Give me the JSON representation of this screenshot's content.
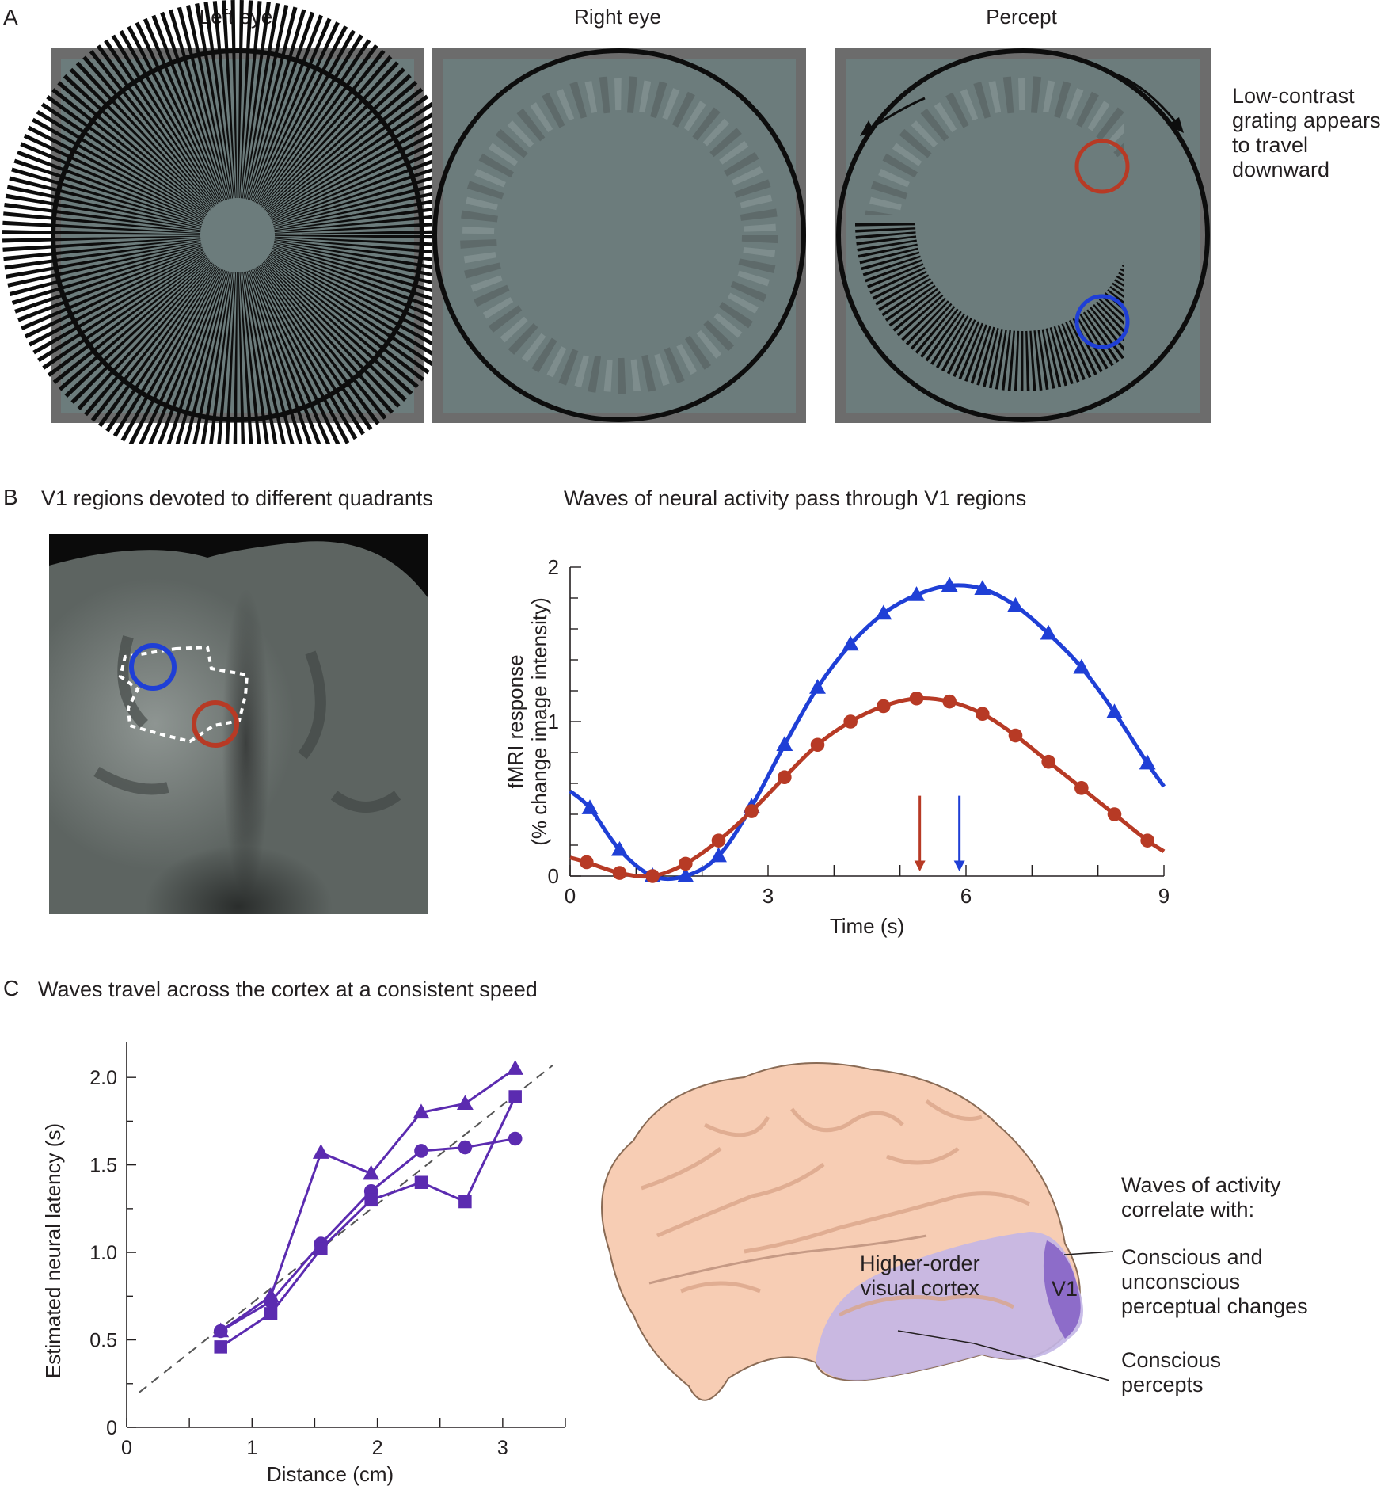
{
  "panel_a": {
    "letter": "A",
    "labels": {
      "left": "Left eye",
      "right": "Right eye",
      "percept": "Percept"
    },
    "annotation": [
      "Low-contrast",
      "grating appears",
      "to travel",
      "downward"
    ]
  },
  "panel_b": {
    "letter": "B",
    "left_title": "V1 regions devoted to different quadrants",
    "right_title": "Waves of neural activity pass through V1 regions"
  },
  "panel_c": {
    "letter": "C",
    "title": "Waves travel across the cortex at a consistent speed",
    "brain": {
      "higher_order": [
        "Higher-order",
        "visual cortex"
      ],
      "v1": "V1",
      "waves_header": [
        "Waves of activity",
        "correlate with:"
      ],
      "conscious_unconscious": [
        "Conscious and",
        "unconscious",
        "perceptual changes"
      ],
      "conscious": [
        "Conscious",
        "percepts"
      ]
    }
  },
  "chart_data": [
    {
      "type": "line",
      "panel": "B",
      "xlabel": "Time (s)",
      "ylabel": "fMRI response (% change image intensity)",
      "ylabel_lines": [
        "fMRI response",
        "(% change image intensity)"
      ],
      "xlim": [
        0,
        9
      ],
      "ylim": [
        0,
        2
      ],
      "xticks": [
        0,
        3,
        6,
        9
      ],
      "yticks": [
        0,
        1,
        2
      ],
      "series": [
        {
          "marker": "triangle",
          "color": "#1f3fd6",
          "x": [
            0.3,
            0.75,
            1.25,
            1.75,
            2.25,
            2.75,
            3.25,
            3.75,
            4.25,
            4.75,
            5.25,
            5.75,
            6.25,
            6.75,
            7.25,
            7.75,
            8.25,
            8.75
          ],
          "y": [
            0.44,
            0.17,
            0.0,
            0.0,
            0.13,
            0.45,
            0.85,
            1.22,
            1.5,
            1.7,
            1.82,
            1.88,
            1.86,
            1.75,
            1.57,
            1.35,
            1.06,
            0.73
          ]
        },
        {
          "marker": "circle",
          "color": "#b73a25",
          "x": [
            0.25,
            0.75,
            1.25,
            1.75,
            2.25,
            2.75,
            3.25,
            3.75,
            4.25,
            4.75,
            5.25,
            5.75,
            6.25,
            6.75,
            7.25,
            7.75,
            8.25,
            8.75
          ],
          "y": [
            0.09,
            0.02,
            0.0,
            0.08,
            0.23,
            0.42,
            0.64,
            0.85,
            1.0,
            1.1,
            1.15,
            1.13,
            1.05,
            0.91,
            0.74,
            0.57,
            0.4,
            0.23
          ]
        }
      ],
      "arrows": [
        {
          "x": 5.3,
          "color": "#b73a25"
        },
        {
          "x": 5.9,
          "color": "#1f3fd6"
        }
      ]
    },
    {
      "type": "line",
      "panel": "C",
      "xlabel": "Distance (cm)",
      "ylabel": "Estimated neural latency (s)",
      "xlim": [
        0,
        3.5
      ],
      "ylim": [
        0,
        2.2
      ],
      "xticks": [
        0,
        1,
        2,
        3
      ],
      "yticks": [
        0,
        0.5,
        1.0,
        1.5,
        2.0
      ],
      "ytick_labels": [
        "0",
        "0.5",
        "1.0",
        "1.5",
        "2.0"
      ],
      "color": "#5b2bb0",
      "series": [
        {
          "marker": "triangle",
          "x": [
            0.75,
            1.15,
            1.55,
            1.95,
            2.35,
            2.7,
            3.1
          ],
          "y": [
            0.55,
            0.75,
            1.57,
            1.45,
            1.8,
            1.85,
            2.05
          ]
        },
        {
          "marker": "circle",
          "x": [
            0.75,
            1.15,
            1.55,
            1.95,
            2.35,
            2.7,
            3.1
          ],
          "y": [
            0.55,
            0.72,
            1.05,
            1.35,
            1.58,
            1.6,
            1.65
          ]
        },
        {
          "marker": "square",
          "x": [
            0.75,
            1.15,
            1.55,
            1.95,
            2.35,
            2.7,
            3.1
          ],
          "y": [
            0.46,
            0.65,
            1.02,
            1.3,
            1.4,
            1.29,
            1.89
          ]
        }
      ],
      "fit_line": {
        "x": [
          0.1,
          3.4
        ],
        "y": [
          0.2,
          2.07
        ],
        "style": "dashed"
      }
    }
  ]
}
